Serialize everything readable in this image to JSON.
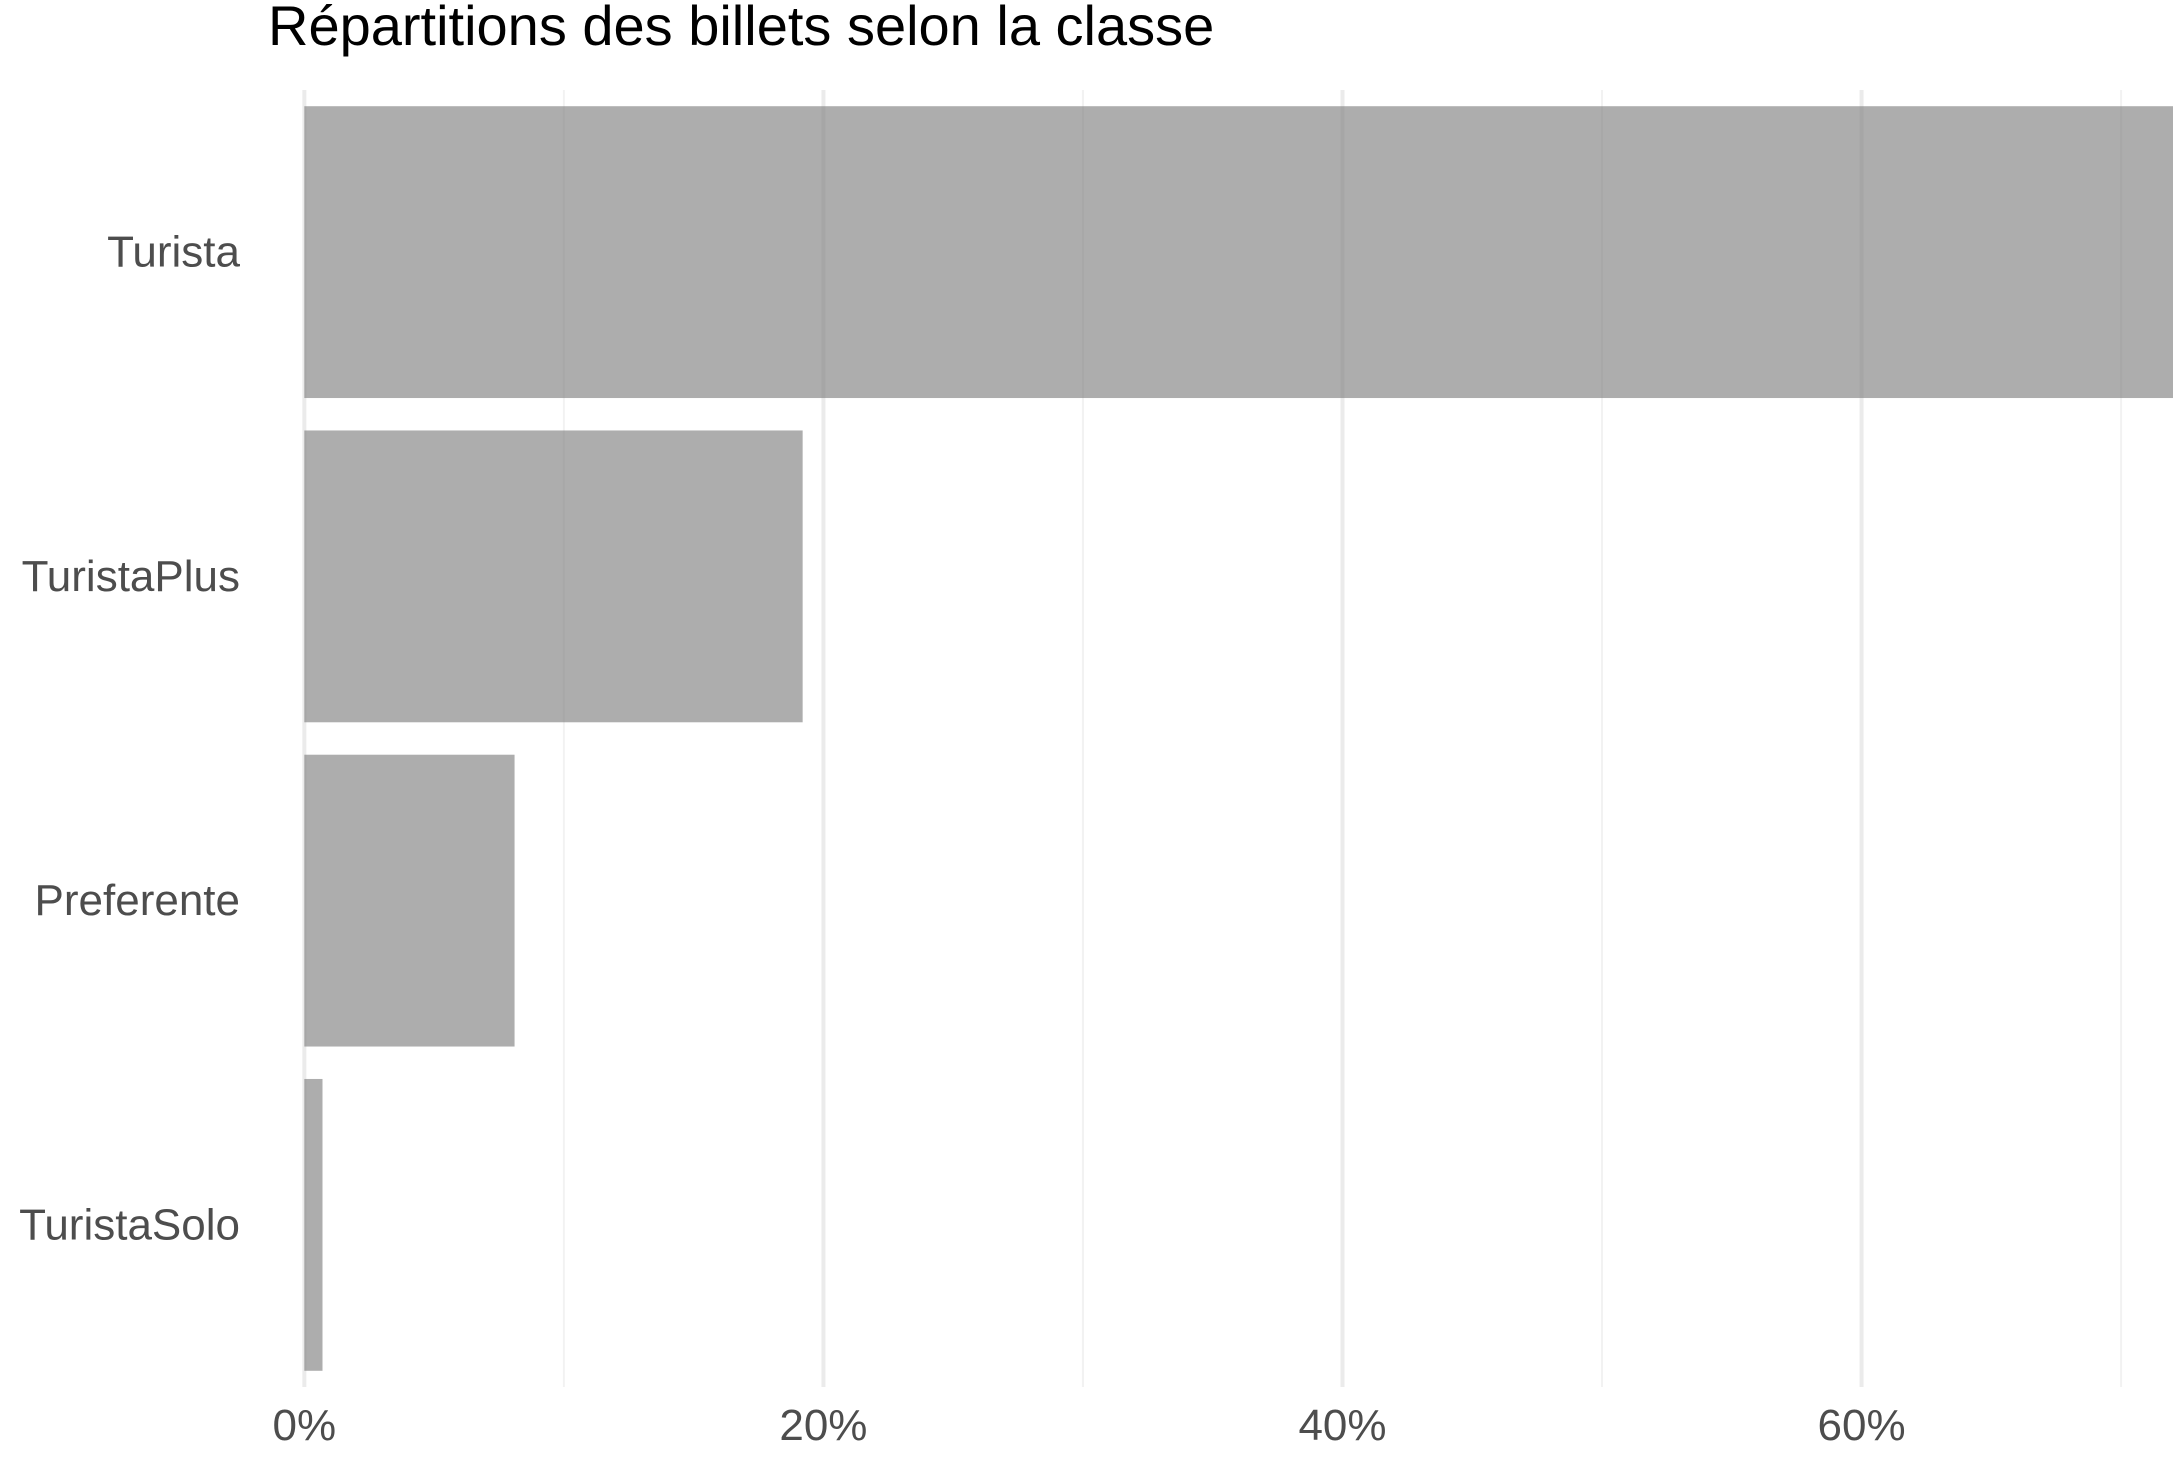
{
  "chart_data": {
    "type": "bar",
    "orientation": "horizontal",
    "title": "Répartitions des billets selon la classe",
    "xlabel": "",
    "ylabel": "",
    "categories": [
      "Turista",
      "TuristaPlus",
      "Preferente",
      "TuristaSolo"
    ],
    "values": [
      72.0,
      19.2,
      8.1,
      0.7
    ],
    "value_unit": "%",
    "xlim": [
      -1.4,
      72.0
    ],
    "x_ticks": [
      0,
      20,
      40,
      60
    ],
    "x_tick_labels": [
      "0%",
      "20%",
      "40%",
      "60%"
    ],
    "minor_grid": [
      10,
      30,
      50,
      70
    ],
    "grid": true,
    "legend": "none",
    "colors": {
      "bar": "#7f7f7f",
      "bar_opacity": 0.64,
      "grid_major": "#ebebeb",
      "grid_minor": "#f2f2f2",
      "tick_label": "#4d4d4d",
      "title": "#000000"
    }
  }
}
